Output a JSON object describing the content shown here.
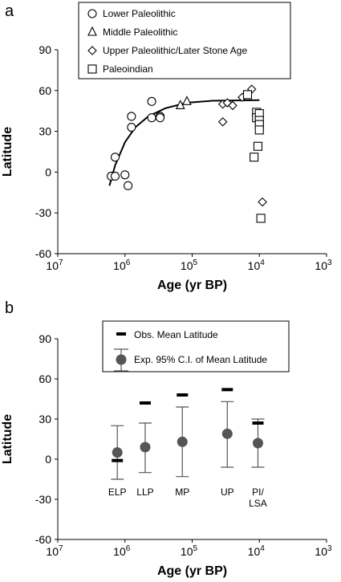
{
  "chart_data": [
    {
      "panel": "a",
      "type": "scatter",
      "xlabel": "Age (yr BP)",
      "ylabel": "Latitude",
      "x_scale": "log",
      "x_reversed": true,
      "xlim": [
        10000000,
        1000
      ],
      "ylim": [
        -60,
        90
      ],
      "x_ticks": [
        {
          "value": 10000000,
          "base": "10",
          "exp": "7"
        },
        {
          "value": 1000000,
          "base": "10",
          "exp": "6"
        },
        {
          "value": 100000,
          "base": "10",
          "exp": "5"
        },
        {
          "value": 10000,
          "base": "10",
          "exp": "4"
        },
        {
          "value": 1000,
          "base": "10",
          "exp": "3"
        }
      ],
      "y_ticks": [
        "-60",
        "-30",
        "0",
        "30",
        "60",
        "90"
      ],
      "legend_position": "top",
      "series": [
        {
          "name": "Lower Paleolithic",
          "marker": "circle",
          "points": [
            {
              "x": 1600000,
              "y": -3
            },
            {
              "x": 1400000,
              "y": -3
            },
            {
              "x": 1400000,
              "y": 11
            },
            {
              "x": 1000000,
              "y": -2
            },
            {
              "x": 900000,
              "y": -10
            },
            {
              "x": 800000,
              "y": 41
            },
            {
              "x": 800000,
              "y": 33
            },
            {
              "x": 400000,
              "y": 52
            },
            {
              "x": 400000,
              "y": 40
            },
            {
              "x": 300000,
              "y": 41
            },
            {
              "x": 300000,
              "y": 40
            }
          ]
        },
        {
          "name": "Middle Paleolithic",
          "marker": "triangle",
          "points": [
            {
              "x": 150000,
              "y": 49
            },
            {
              "x": 120000,
              "y": 52
            }
          ]
        },
        {
          "name": "Upper Paleolithic/Later Stone Age",
          "marker": "diamond",
          "points": [
            {
              "x": 35000,
              "y": 50
            },
            {
              "x": 30000,
              "y": 51
            },
            {
              "x": 25000,
              "y": 49
            },
            {
              "x": 35000,
              "y": 37
            },
            {
              "x": 18000,
              "y": 55
            },
            {
              "x": 13000,
              "y": 61
            },
            {
              "x": 9000,
              "y": -22
            }
          ]
        },
        {
          "name": "Paleoindian",
          "marker": "square",
          "points": [
            {
              "x": 15000,
              "y": 57
            },
            {
              "x": 11000,
              "y": 44
            },
            {
              "x": 11000,
              "y": 40
            },
            {
              "x": 10000,
              "y": 43
            },
            {
              "x": 10000,
              "y": 38
            },
            {
              "x": 10000,
              "y": 35
            },
            {
              "x": 10000,
              "y": 31
            },
            {
              "x": 10500,
              "y": 19
            },
            {
              "x": 12000,
              "y": 11
            },
            {
              "x": 9500,
              "y": -34
            }
          ]
        }
      ],
      "fit_curve": [
        {
          "x": 1700000,
          "y": -10
        },
        {
          "x": 1400000,
          "y": 5
        },
        {
          "x": 1000000,
          "y": 22
        },
        {
          "x": 700000,
          "y": 33
        },
        {
          "x": 450000,
          "y": 41
        },
        {
          "x": 250000,
          "y": 47
        },
        {
          "x": 120000,
          "y": 51
        },
        {
          "x": 50000,
          "y": 52.5
        },
        {
          "x": 10000,
          "y": 53
        }
      ]
    },
    {
      "panel": "b",
      "type": "errorbar",
      "xlabel": "Age (yr BP)",
      "ylabel": "Latitude",
      "x_scale": "log",
      "x_reversed": true,
      "xlim": [
        10000000,
        1000
      ],
      "ylim": [
        -60,
        90
      ],
      "x_ticks": [
        {
          "value": 10000000,
          "base": "10",
          "exp": "7"
        },
        {
          "value": 1000000,
          "base": "10",
          "exp": "6"
        },
        {
          "value": 100000,
          "base": "10",
          "exp": "5"
        },
        {
          "value": 10000,
          "base": "10",
          "exp": "4"
        },
        {
          "value": 1000,
          "base": "10",
          "exp": "3"
        }
      ],
      "y_ticks": [
        "-60",
        "-30",
        "0",
        "30",
        "60",
        "90"
      ],
      "legend_position": "top",
      "legend": {
        "observed": "Obs. Mean Latitude",
        "expected": "Exp. 95% C.I. of  Mean Latitude"
      },
      "categories": [
        {
          "label": "ELP",
          "label2": "",
          "x": 1300000,
          "expected_mean": 5,
          "ci_low": -15,
          "ci_high": 25,
          "observed_mean": -1
        },
        {
          "label": "LLP",
          "label2": "",
          "x": 500000,
          "expected_mean": 9,
          "ci_low": -10,
          "ci_high": 27,
          "observed_mean": 42
        },
        {
          "label": "MP",
          "label2": "",
          "x": 140000,
          "expected_mean": 13,
          "ci_low": -13,
          "ci_high": 39,
          "observed_mean": 48
        },
        {
          "label": "UP",
          "label2": "",
          "x": 30000,
          "expected_mean": 19,
          "ci_low": -6,
          "ci_high": 43,
          "observed_mean": 52
        },
        {
          "label": "PI/",
          "label2": "LSA",
          "x": 10500,
          "expected_mean": 12,
          "ci_low": -6,
          "ci_high": 30,
          "observed_mean": 27
        }
      ]
    }
  ]
}
